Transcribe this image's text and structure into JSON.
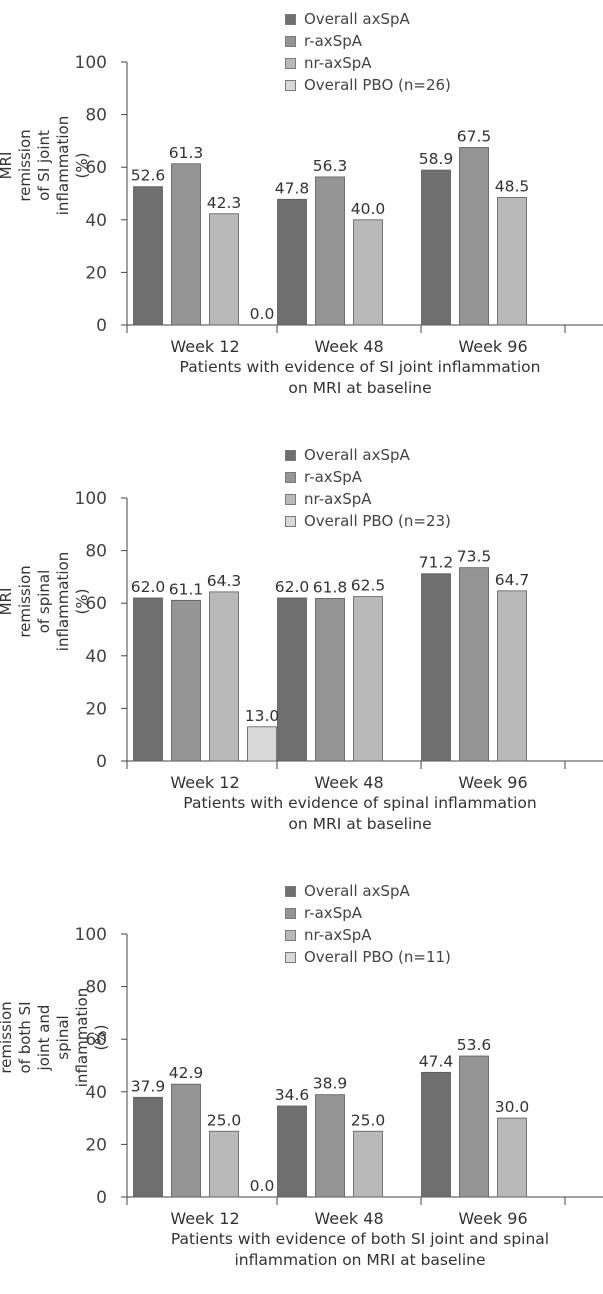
{
  "colors": {
    "Overall axSpA": "#6f6f6f",
    "r-axSpA": "#959595",
    "nr-axSpA": "#b9b9b9",
    "Overall PBO": "#d8d8d8"
  },
  "chart_data": [
    {
      "type": "bar",
      "categories": [
        "Week 12",
        "Week 48",
        "Week 96"
      ],
      "ylabel": "Patients achieving MRI remission of SI joint inflammation (%)",
      "ylabel_lines": [
        "Patients achieving MRI remission",
        "of SI joint inflammation (%)"
      ],
      "xlabel": "Patients with evidence of SI joint inflammation on MRI at baseline",
      "xlabel_lines": [
        "Patients with evidence of SI joint inflammation",
        "on MRI at baseline"
      ],
      "ylim": [
        0,
        100
      ],
      "yticks": [
        0,
        20,
        40,
        60,
        80,
        100
      ],
      "legend": [
        "Overall axSpA",
        "r-axSpA",
        "nr-axSpA",
        "Overall PBO (n=26)"
      ],
      "legend_position": "top-right",
      "series": [
        {
          "name": "Overall axSpA",
          "values": [
            52.6,
            47.8,
            58.9
          ],
          "labels": [
            "52.6",
            "47.8",
            "58.9"
          ]
        },
        {
          "name": "r-axSpA",
          "values": [
            61.3,
            56.3,
            67.5
          ],
          "labels": [
            "61.3",
            "56.3",
            "67.5"
          ]
        },
        {
          "name": "nr-axSpA",
          "values": [
            42.3,
            40.0,
            48.5
          ],
          "labels": [
            "42.3",
            "40.0",
            "48.5"
          ]
        },
        {
          "name": "Overall PBO (n=26)",
          "values": [
            0.0,
            null,
            null
          ],
          "labels": [
            "0.0",
            null,
            null
          ]
        }
      ]
    },
    {
      "type": "bar",
      "categories": [
        "Week 12",
        "Week 48",
        "Week 96"
      ],
      "ylabel": "Patients achieving MRI remission of spinal inflammation (%)",
      "ylabel_lines": [
        "Patients achieving MRI remission",
        "of spinal inflammation (%)"
      ],
      "xlabel": "Patients with evidence of spinal inflammation on MRI at baseline",
      "xlabel_lines": [
        "Patients with evidence of spinal inflammation",
        "on MRI at baseline"
      ],
      "ylim": [
        0,
        100
      ],
      "yticks": [
        0,
        20,
        40,
        60,
        80,
        100
      ],
      "legend": [
        "Overall axSpA",
        "r-axSpA",
        "nr-axSpA",
        "Overall PBO (n=23)"
      ],
      "legend_position": "top-right",
      "series": [
        {
          "name": "Overall axSpA",
          "values": [
            62.0,
            62.0,
            71.2
          ],
          "labels": [
            "62.0",
            "62.0",
            "71.2"
          ]
        },
        {
          "name": "r-axSpA",
          "values": [
            61.1,
            61.8,
            73.5
          ],
          "labels": [
            "61.1",
            "61.8",
            "73.5"
          ]
        },
        {
          "name": "nr-axSpA",
          "values": [
            64.3,
            62.5,
            64.7
          ],
          "labels": [
            "64.3",
            "62.5",
            "64.7"
          ]
        },
        {
          "name": "Overall PBO (n=23)",
          "values": [
            13.0,
            null,
            null
          ],
          "labels": [
            "13.0",
            null,
            null
          ]
        }
      ]
    },
    {
      "type": "bar",
      "categories": [
        "Week 12",
        "Week 48",
        "Week 96"
      ],
      "ylabel": "Patients achieving MRI remission of both SI joint and spinal inflammation (%)",
      "ylabel_lines": [
        "Patients achieving MRI remission",
        "of both SI joint and spinal",
        "inflammation (%)"
      ],
      "xlabel": "Patients with evidence of both SI joint and spinal inflammation on MRI at baseline",
      "xlabel_lines": [
        "Patients with evidence of both SI joint and spinal",
        "inflammation on MRI at baseline"
      ],
      "ylim": [
        0,
        100
      ],
      "yticks": [
        0,
        20,
        40,
        60,
        80,
        100
      ],
      "legend": [
        "Overall axSpA",
        "r-axSpA",
        "nr-axSpA",
        "Overall PBO (n=11)"
      ],
      "legend_position": "top-right",
      "series": [
        {
          "name": "Overall axSpA",
          "values": [
            37.9,
            34.6,
            47.4
          ],
          "labels": [
            "37.9",
            "34.6",
            "47.4"
          ]
        },
        {
          "name": "r-axSpA",
          "values": [
            42.9,
            38.9,
            53.6
          ],
          "labels": [
            "42.9",
            "38.9",
            "53.6"
          ]
        },
        {
          "name": "nr-axSpA",
          "values": [
            25.0,
            25.0,
            30.0
          ],
          "labels": [
            "25.0",
            "25.0",
            "30.0"
          ]
        },
        {
          "name": "Overall PBO (n=11)",
          "values": [
            0.0,
            null,
            null
          ],
          "labels": [
            "0.0",
            null,
            null
          ]
        }
      ]
    }
  ]
}
